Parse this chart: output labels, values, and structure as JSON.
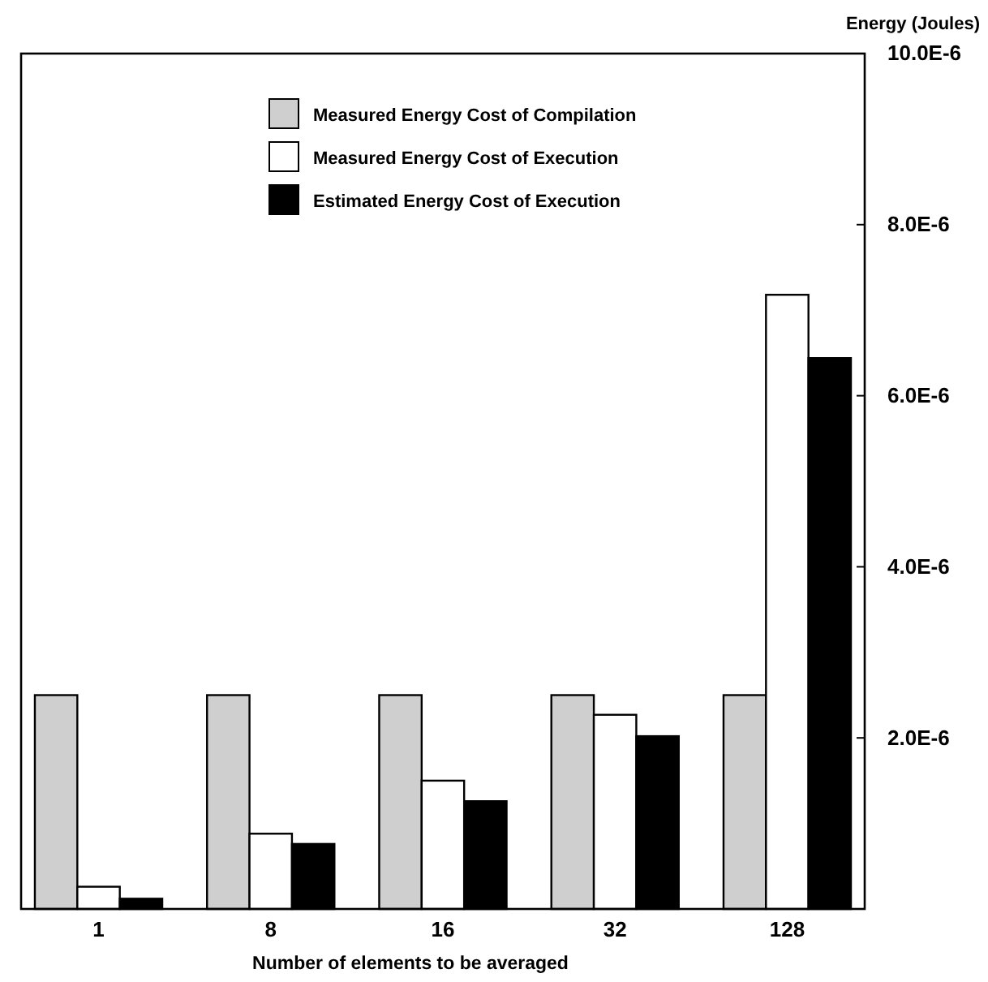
{
  "chart_data": {
    "type": "bar",
    "xlabel": "Number of elements to be averaged",
    "ylabel": "Energy (Joules)",
    "categories": [
      "1",
      "8",
      "16",
      "32",
      "128"
    ],
    "series": [
      {
        "name": "Measured Energy Cost of Compilation",
        "color": "#cfcfcf",
        "values": [
          2.5e-06,
          2.5e-06,
          2.5e-06,
          2.5e-06,
          2.5e-06
        ]
      },
      {
        "name": "Measured Energy Cost of Execution",
        "color": "#ffffff",
        "values": [
          2.6e-07,
          8.8e-07,
          1.5e-06,
          2.27e-06,
          7.18e-06
        ]
      },
      {
        "name": "Estimated Energy Cost of Execution",
        "color": "#000000",
        "values": [
          1.2e-07,
          7.6e-07,
          1.26e-06,
          2.02e-06,
          6.44e-06
        ]
      }
    ],
    "ylim": [
      0,
      1e-05
    ],
    "yticks": [
      {
        "value": 2e-06,
        "label": "2.0E-6"
      },
      {
        "value": 4e-06,
        "label": "4.0E-6"
      },
      {
        "value": 6e-06,
        "label": "6.0E-6"
      },
      {
        "value": 8e-06,
        "label": "8.0E-6"
      },
      {
        "value": 1e-05,
        "label": "10.0E-6"
      }
    ],
    "legend": "top left",
    "grid": false
  }
}
